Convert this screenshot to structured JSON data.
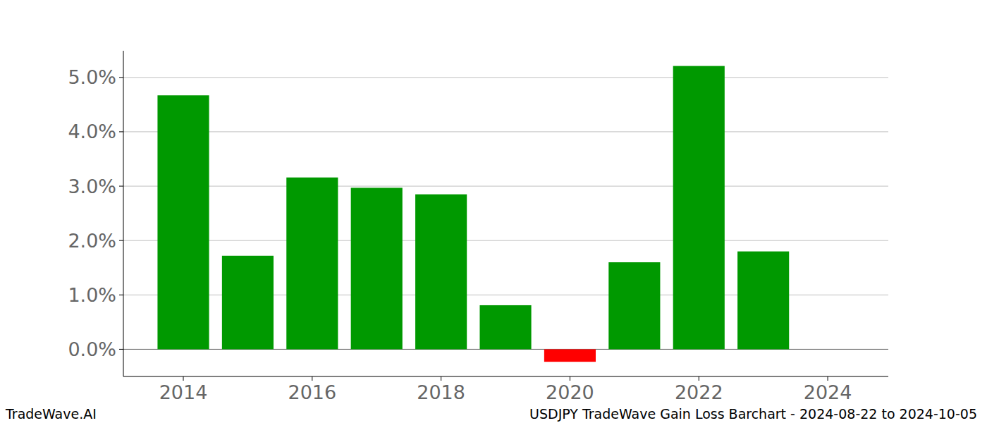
{
  "chart_data": {
    "type": "bar",
    "title": "USDJPY TradeWave Gain Loss Barchart - 2024-08-22 to 2024-10-05",
    "annotations": [
      "TradeWave.AI"
    ],
    "x": [
      2014,
      2015,
      2016,
      2017,
      2018,
      2019,
      2020,
      2021,
      2022,
      2023
    ],
    "values": [
      4.67,
      1.72,
      3.16,
      2.97,
      2.85,
      0.81,
      -0.23,
      1.6,
      5.21,
      1.8
    ],
    "colors": [
      "#009900",
      "#009900",
      "#009900",
      "#009900",
      "#009900",
      "#009900",
      "#ff0000",
      "#009900",
      "#009900",
      "#009900"
    ],
    "xlim": [
      2013.07,
      2024.94
    ],
    "xticks": [
      2014,
      2016,
      2018,
      2020,
      2022,
      2024
    ],
    "ylim": [
      -0.5,
      5.49
    ],
    "yticks": [
      {
        "value": 0,
        "label": "0.0%"
      },
      {
        "value": 1,
        "label": "1.0%"
      },
      {
        "value": 2,
        "label": "2.0%"
      },
      {
        "value": 3,
        "label": "3.0%"
      },
      {
        "value": 4,
        "label": "4.0%"
      },
      {
        "value": 5,
        "label": "5.0%"
      }
    ],
    "grid": true
  }
}
